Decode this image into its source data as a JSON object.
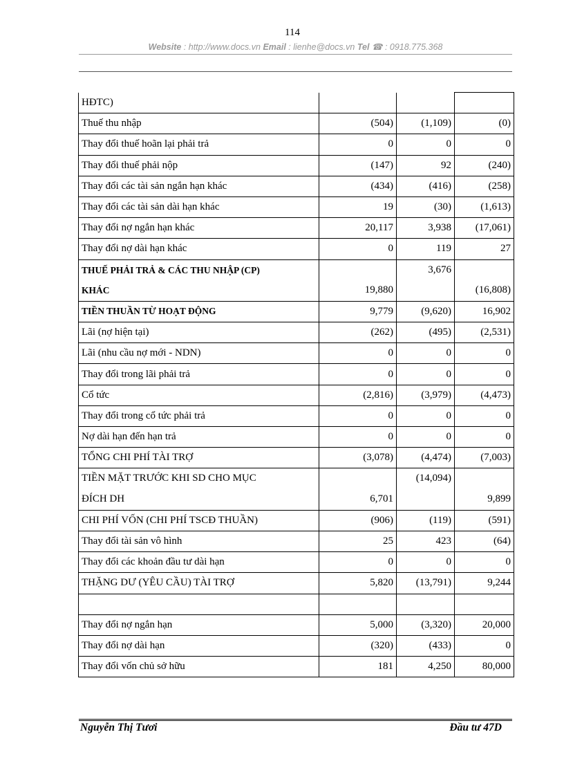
{
  "header": {
    "website_label": "Website",
    "website": " : http://www.docs.vn ",
    "email_label": "Email",
    "email": " : lienhe@docs.vn ",
    "tel_label": "Tel",
    "tel": " ☎ : 0918.775.368",
    "page_number": "114"
  },
  "table": {
    "rows": [
      {
        "label": "HĐTC)",
        "values": [
          "",
          "",
          ""
        ]
      },
      {
        "label": "Thuế thu nhập",
        "values": [
          "(504)",
          "(1,109)",
          "(0)"
        ]
      },
      {
        "label": "Thay đổi thuế hoãn lại phải trả",
        "values": [
          "0",
          "0",
          "0"
        ]
      },
      {
        "label": "Thay đổi thuế phải nộp",
        "values": [
          "(147)",
          "92",
          "(240)"
        ]
      },
      {
        "label": "Thay đổi các tài sản ngắn hạn khác",
        "values": [
          "(434)",
          "(416)",
          "(258)"
        ]
      },
      {
        "label": "Thay đổi các tài sản dài hạn khác",
        "values": [
          "19",
          "(30)",
          "(1,613)"
        ]
      },
      {
        "label": "Thay đổi nợ ngắn hạn khác",
        "values": [
          "20,117",
          "3,938",
          "(17,061)"
        ]
      },
      {
        "label": "Thay đổi nợ dài hạn khác",
        "values": [
          "0",
          "119",
          "27"
        ]
      },
      {
        "label": [
          "THUẾ PHẢI TRẢ & CÁC THU NHẬP (CP)",
          "KHÁC"
        ],
        "bold": true,
        "values": [
          [
            "",
            "19,880"
          ],
          [
            "3,676",
            ""
          ],
          [
            "",
            "(16,808)"
          ]
        ]
      },
      {
        "label": "TIỀN THUẦN TỪ HOẠT ĐỘNG",
        "bold": true,
        "values": [
          "9,779",
          "(9,620)",
          "16,902"
        ]
      },
      {
        "label": "Lãi (nợ hiện tại)",
        "values": [
          "(262)",
          "(495)",
          "(2,531)"
        ]
      },
      {
        "label": "Lãi (nhu cầu nợ mới - NDN)",
        "values": [
          "0",
          "0",
          "0"
        ]
      },
      {
        "label": "Thay đổi trong lãi phải trả",
        "values": [
          "0",
          "0",
          "0"
        ]
      },
      {
        "label": "Cổ tức",
        "values": [
          "(2,816)",
          "(3,979)",
          "(4,473)"
        ]
      },
      {
        "label": "Thay đổi trong cổ tức phải trả",
        "values": [
          "0",
          "0",
          "0"
        ]
      },
      {
        "label": "Nợ dài hạn đến hạn trả",
        "values": [
          "0",
          "0",
          "0"
        ]
      },
      {
        "label": "TỔNG CHI PHÍ TÀI TRỢ",
        "values": [
          "(3,078)",
          "(4,474)",
          "(7,003)"
        ]
      },
      {
        "label": [
          "TIỀN MẶT TRƯỚC KHI SD CHO MỤC",
          "ĐÍCH DH"
        ],
        "values": [
          [
            "",
            "6,701"
          ],
          [
            "(14,094)",
            ""
          ],
          [
            "",
            "9,899"
          ]
        ]
      },
      {
        "label": "CHI PHÍ VỐN (CHI PHÍ TSCĐ THUẦN)",
        "values": [
          "(906)",
          "(119)",
          "(591)"
        ]
      },
      {
        "label": "Thay đổi tài sản vô hình",
        "values": [
          "25",
          "423",
          "(64)"
        ]
      },
      {
        "label": "Thay đổi các khoản đầu tư dài hạn",
        "values": [
          "0",
          "0",
          "0"
        ]
      },
      {
        "label": "THẶNG DƯ (YÊU CẦU) TÀI TRỢ",
        "values": [
          "5,820",
          "(13,791)",
          "9,244"
        ]
      },
      {
        "label": "",
        "values": [
          "",
          "",
          ""
        ]
      },
      {
        "label": "Thay đổi nợ ngắn hạn",
        "values": [
          "5,000",
          "(3,320)",
          "20,000"
        ]
      },
      {
        "label": "Thay đổi nợ dài hạn",
        "values": [
          "(320)",
          "(433)",
          "0"
        ]
      },
      {
        "label": "Thay đổi vốn chủ sở hữu",
        "values": [
          "181",
          "4,250",
          "80,000"
        ]
      }
    ]
  },
  "footer": {
    "author": "Nguyễn  Thị  Tươi",
    "class": "Đầu tư 47D"
  }
}
